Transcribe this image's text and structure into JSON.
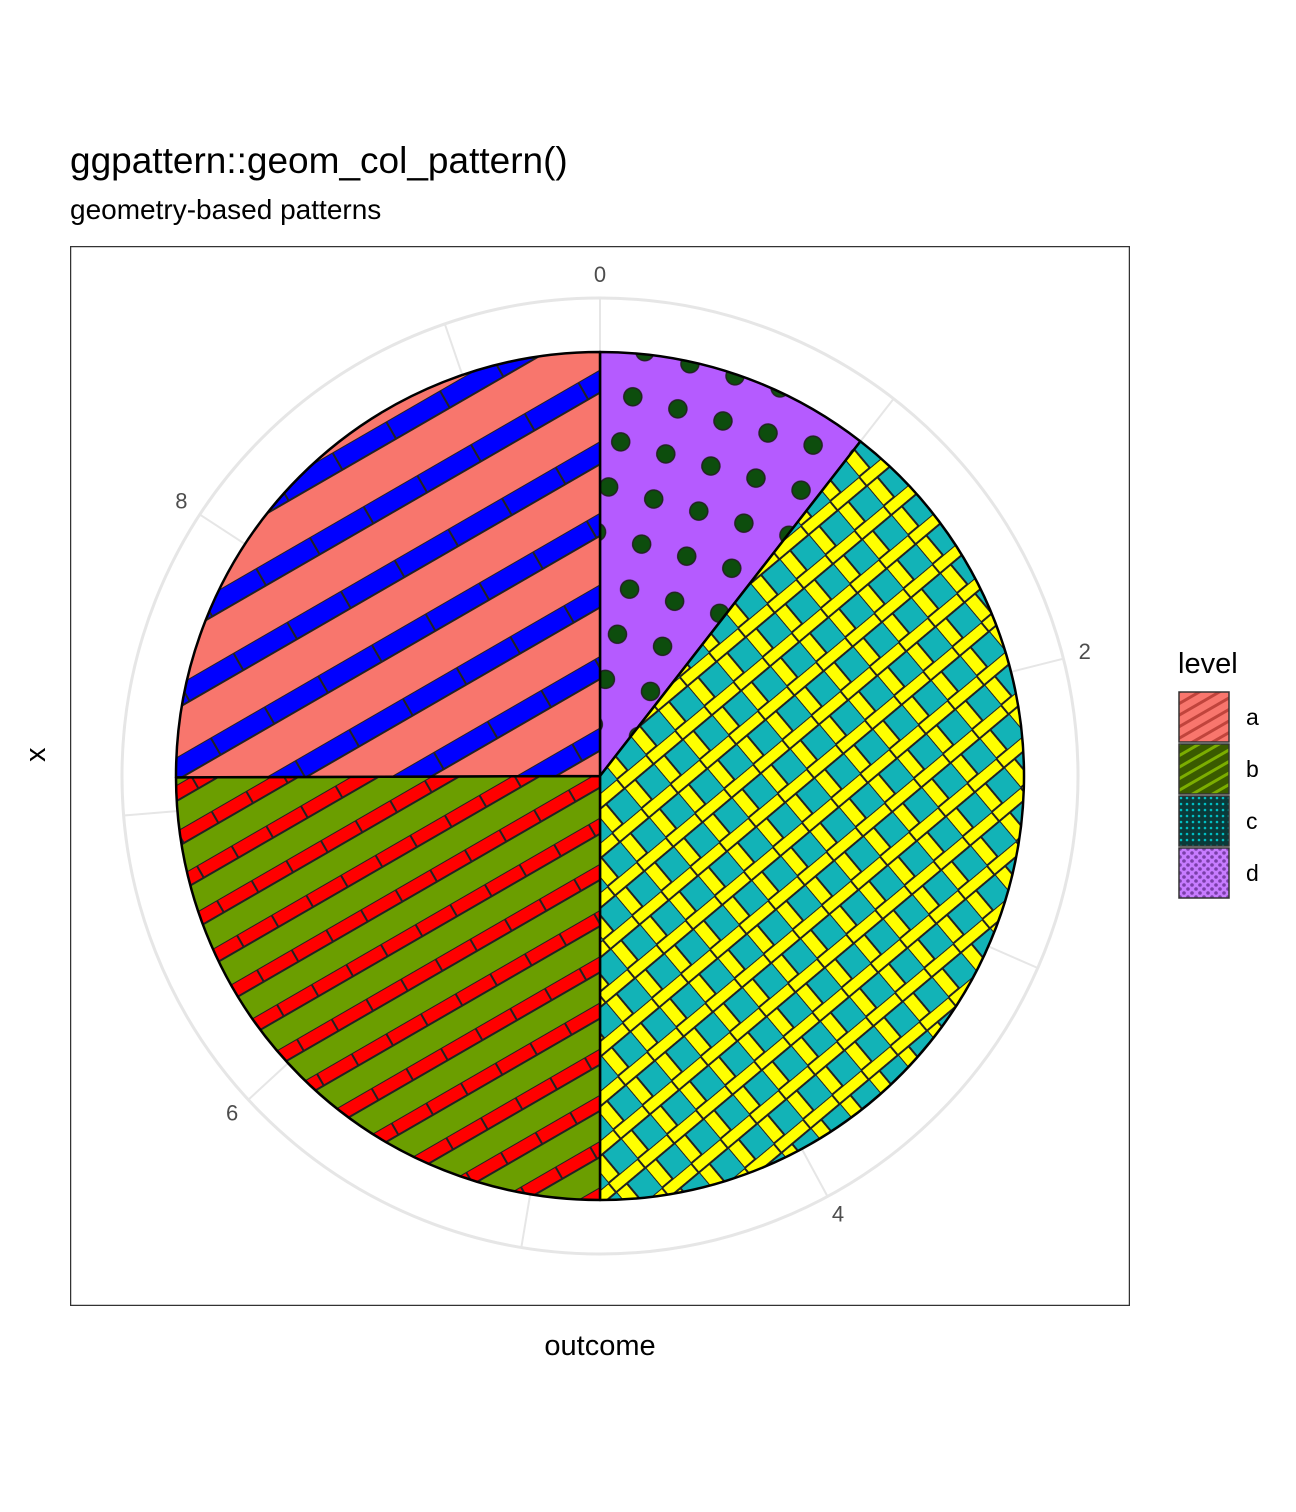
{
  "title": "ggpattern::geom_col_pattern()",
  "subtitle": "geometry-based patterns",
  "xlabel": "outcome",
  "ylabel": "x",
  "legend": {
    "title": "level",
    "items": [
      {
        "label": "a",
        "fill": "#F8766D",
        "pattern": "stripe",
        "pattern_fill": "#0000FF"
      },
      {
        "label": "b",
        "fill": "#7CAE00",
        "pattern": "stripe",
        "pattern_fill": "#FF0000"
      },
      {
        "label": "c",
        "fill": "#00BFC4",
        "pattern": "crosshatch",
        "pattern_fill": "#FFFF00"
      },
      {
        "label": "d",
        "fill": "#C77CFF",
        "pattern": "circle",
        "pattern_fill": "#0D4D0D"
      }
    ]
  },
  "chart_data": {
    "type": "pie",
    "title": "ggpattern::geom_col_pattern()",
    "subtitle": "geometry-based patterns",
    "xlabel": "outcome",
    "ylabel": "x",
    "theta_axis": {
      "ticks": [
        0,
        2,
        4,
        6,
        8
      ],
      "range": [
        0,
        9.5
      ]
    },
    "grid": true,
    "legend_position": "right",
    "stack_order": [
      "d",
      "c",
      "b",
      "a"
    ],
    "slices": [
      {
        "label": "d",
        "value": 1.0
      },
      {
        "label": "c",
        "value": 3.75
      },
      {
        "label": "b",
        "value": 2.37
      },
      {
        "label": "a",
        "value": 2.38
      }
    ],
    "categories": [
      "a",
      "b",
      "c",
      "d"
    ],
    "values": [
      2.38,
      2.37,
      3.75,
      1.0
    ]
  }
}
